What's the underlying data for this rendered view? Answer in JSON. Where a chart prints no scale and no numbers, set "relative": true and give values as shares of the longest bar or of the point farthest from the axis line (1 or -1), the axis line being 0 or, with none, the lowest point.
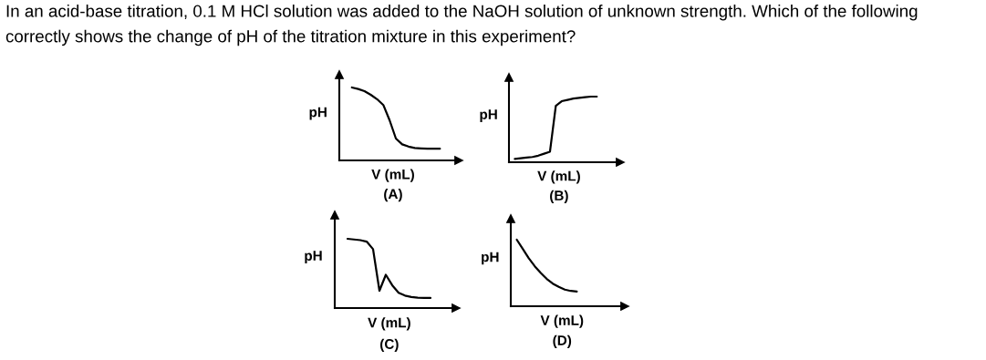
{
  "chart_data": [
    {
      "type": "line",
      "title": "In an acid-base titration, 0.1 M HCl solution was added to the NaOH solution of unknown strength. Which of the following correctly shows the change of pH of the titration mixture in this experiment?",
      "xlabel": "V (mL)",
      "ylabel": "pH",
      "annotations": [
        "(A)"
      ],
      "relative": true,
      "categories": [
        null,
        null,
        null,
        null,
        null,
        null,
        null,
        null,
        null,
        null,
        null,
        null,
        null,
        null,
        null
      ],
      "series": [
        {
          "color": "#000000",
          "values": [
            1.0,
            0.98,
            0.95,
            0.9,
            0.84,
            0.76,
            0.55,
            0.3,
            0.22,
            0.19,
            0.17,
            0.165,
            0.16,
            0.16,
            0.16
          ]
        }
      ]
    },
    {
      "type": "line",
      "xlabel": "V (mL)",
      "ylabel": "pH",
      "annotations": [
        "(B)"
      ],
      "relative": true,
      "categories": [
        null,
        null,
        null,
        null,
        null,
        null,
        null,
        null,
        null,
        null,
        null,
        null,
        null,
        null,
        null
      ],
      "series": [
        {
          "color": "#000000",
          "values": [
            0.05,
            0.06,
            0.07,
            0.08,
            0.1,
            0.13,
            0.16,
            0.86,
            0.93,
            0.95,
            0.97,
            0.98,
            0.99,
            1.0,
            1.0
          ]
        }
      ]
    },
    {
      "type": "line",
      "xlabel": "V (mL)",
      "ylabel": "pH",
      "annotations": [
        "(C)"
      ],
      "relative": true,
      "categories": [
        null,
        null,
        null,
        null,
        null,
        null,
        null,
        null,
        null,
        null,
        null,
        null,
        null,
        null
      ],
      "series": [
        {
          "color": "#000000",
          "values": [
            1.0,
            0.99,
            0.98,
            0.96,
            0.85,
            0.25,
            0.48,
            0.33,
            0.22,
            0.18,
            0.16,
            0.15,
            0.145,
            0.145
          ]
        }
      ]
    },
    {
      "type": "line",
      "xlabel": "V (mL)",
      "ylabel": "pH",
      "annotations": [
        "(D)"
      ],
      "relative": true,
      "categories": [
        null,
        null,
        null,
        null,
        null,
        null,
        null,
        null,
        null,
        null,
        null
      ],
      "series": [
        {
          "color": "#000000",
          "values": [
            1.0,
            0.86,
            0.72,
            0.6,
            0.5,
            0.41,
            0.34,
            0.29,
            0.25,
            0.23,
            0.22
          ]
        }
      ]
    }
  ]
}
